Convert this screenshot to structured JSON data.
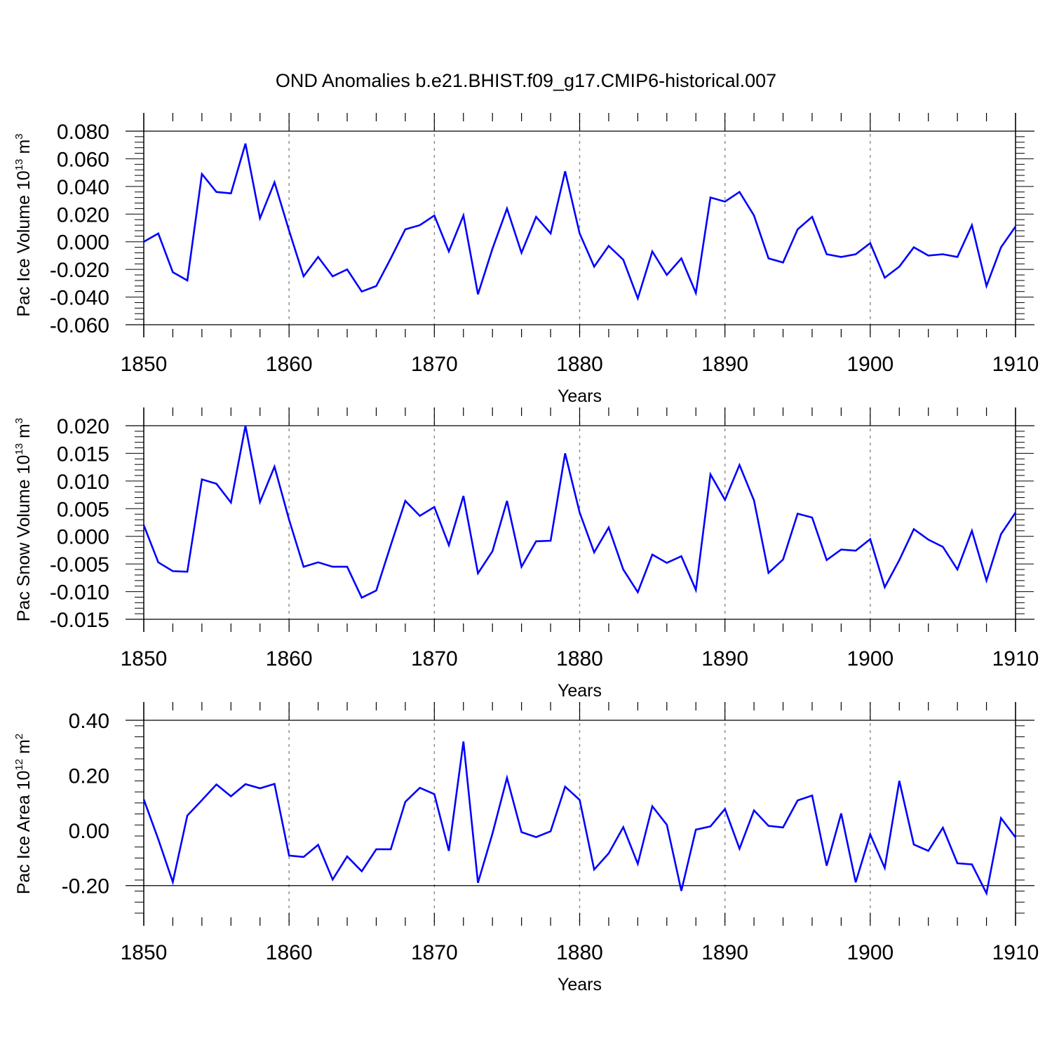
{
  "figure": {
    "title": "OND Anomalies b.e21.BHIST.f09_g17.CMIP6-historical.007",
    "line_color": "#0000ff"
  },
  "chart_data": [
    {
      "type": "line",
      "ylabel": {
        "main": "Pac Ice Volume 10",
        "sup": "13",
        "unit": " m",
        "unit_sup": "3"
      },
      "xlabel": "Years",
      "xlim": [
        1850,
        1910
      ],
      "xticks": [
        1850,
        1860,
        1870,
        1880,
        1890,
        1900,
        1910
      ],
      "xtick_labels": [
        "1850",
        "1860",
        "1870",
        "1880",
        "1890",
        "1900",
        "1910"
      ],
      "ylim": [
        -0.06,
        0.08
      ],
      "yticks": [
        -0.06,
        -0.04,
        -0.02,
        0.0,
        0.02,
        0.04,
        0.06,
        0.08
      ],
      "ytick_labels": [
        "-0.060",
        "-0.040",
        "-0.020",
        "0.000",
        "0.020",
        "0.040",
        "0.060",
        "0.080"
      ],
      "grid": "vertical dashed at major x ticks",
      "series": [
        {
          "x": [
            1850,
            1851,
            1852,
            1853,
            1854,
            1855,
            1856,
            1857,
            1858,
            1859,
            1860,
            1861,
            1862,
            1863,
            1864,
            1865,
            1866,
            1867,
            1868,
            1869,
            1870,
            1871,
            1872,
            1873,
            1874,
            1875,
            1876,
            1877,
            1878,
            1879,
            1880,
            1881,
            1882,
            1883,
            1884,
            1885,
            1886,
            1887,
            1888,
            1889,
            1890,
            1891,
            1892,
            1893,
            1894,
            1895,
            1896,
            1897,
            1898,
            1899,
            1900,
            1901,
            1902,
            1903,
            1904,
            1905,
            1906,
            1907,
            1908,
            1909,
            1910
          ],
          "values": [
            0.0,
            0.006,
            -0.022,
            -0.028,
            0.049,
            0.036,
            0.035,
            0.071,
            0.017,
            0.043,
            0.008,
            -0.025,
            -0.011,
            -0.025,
            -0.02,
            -0.036,
            -0.032,
            -0.012,
            0.009,
            0.012,
            0.019,
            -0.007,
            0.019,
            -0.038,
            -0.005,
            0.024,
            -0.008,
            0.018,
            0.006,
            0.051,
            0.006,
            -0.018,
            -0.003,
            -0.013,
            -0.041,
            -0.007,
            -0.024,
            -0.012,
            -0.037,
            0.032,
            0.029,
            0.036,
            0.019,
            -0.012,
            -0.015,
            0.009,
            0.018,
            -0.009,
            -0.011,
            -0.009,
            -0.001,
            -0.026,
            -0.018,
            -0.004,
            -0.01,
            -0.009,
            -0.011,
            0.012,
            -0.032,
            -0.004,
            0.011
          ]
        }
      ]
    },
    {
      "type": "line",
      "ylabel": {
        "main": "Pac Snow Volume 10",
        "sup": "13",
        "unit": " m",
        "unit_sup": "3"
      },
      "xlabel": "Years",
      "xlim": [
        1850,
        1910
      ],
      "xticks": [
        1850,
        1860,
        1870,
        1880,
        1890,
        1900,
        1910
      ],
      "xtick_labels": [
        "1850",
        "1860",
        "1870",
        "1880",
        "1890",
        "1900",
        "1910"
      ],
      "ylim": [
        -0.015,
        0.02
      ],
      "yticks": [
        -0.015,
        -0.01,
        -0.005,
        0.0,
        0.005,
        0.01,
        0.015,
        0.02
      ],
      "ytick_labels": [
        "-0.015",
        "-0.010",
        "-0.005",
        "0.000",
        "0.005",
        "0.010",
        "0.015",
        "0.020"
      ],
      "grid": "vertical dashed at major x ticks",
      "series": [
        {
          "x": [
            1850,
            1851,
            1852,
            1853,
            1854,
            1855,
            1856,
            1857,
            1858,
            1859,
            1860,
            1861,
            1862,
            1863,
            1864,
            1865,
            1866,
            1867,
            1868,
            1869,
            1870,
            1871,
            1872,
            1873,
            1874,
            1875,
            1876,
            1877,
            1878,
            1879,
            1880,
            1881,
            1882,
            1883,
            1884,
            1885,
            1886,
            1887,
            1888,
            1889,
            1890,
            1891,
            1892,
            1893,
            1894,
            1895,
            1896,
            1897,
            1898,
            1899,
            1900,
            1901,
            1902,
            1903,
            1904,
            1905,
            1906,
            1907,
            1908,
            1909,
            1910
          ],
          "values": [
            0.002,
            -0.0047,
            -0.0063,
            -0.0064,
            0.0103,
            0.0095,
            0.0061,
            0.02,
            0.0062,
            0.0126,
            0.003,
            -0.0055,
            -0.0047,
            -0.0055,
            -0.0055,
            -0.0111,
            -0.0098,
            -0.0016,
            0.0064,
            0.0037,
            0.0053,
            -0.0016,
            0.0073,
            -0.0067,
            -0.0027,
            0.0064,
            -0.0055,
            -0.0009,
            -0.0008,
            0.015,
            0.0043,
            -0.0029,
            0.0016,
            -0.006,
            -0.0101,
            -0.0033,
            -0.0048,
            -0.0036,
            -0.0097,
            0.0112,
            0.0066,
            0.0129,
            0.0065,
            -0.0066,
            -0.0042,
            0.0041,
            0.0034,
            -0.0043,
            -0.0024,
            -0.0026,
            -0.0005,
            -0.0092,
            -0.0043,
            0.0013,
            -0.0006,
            -0.0019,
            -0.006,
            0.001,
            -0.008,
            0.0004,
            0.0043
          ]
        }
      ]
    },
    {
      "type": "line",
      "ylabel": {
        "main": "Pac Ice Area 10",
        "sup": "12",
        "unit": " m",
        "unit_sup": "2"
      },
      "xlabel": "Years",
      "xlim": [
        1850,
        1910
      ],
      "xticks": [
        1850,
        1860,
        1870,
        1880,
        1890,
        1900,
        1910
      ],
      "xtick_labels": [
        "1850",
        "1860",
        "1870",
        "1880",
        "1890",
        "1900",
        "1910"
      ],
      "ylim": [
        -0.3,
        0.4
      ],
      "yticks": [
        -0.2,
        0.0,
        0.2,
        0.4
      ],
      "ytick_labels": [
        "-0.20",
        "0.00",
        "0.20",
        "0.40"
      ],
      "grid": "vertical dashed at major x ticks",
      "series": [
        {
          "x": [
            1850,
            1851,
            1852,
            1853,
            1854,
            1855,
            1856,
            1857,
            1858,
            1859,
            1860,
            1861,
            1862,
            1863,
            1864,
            1865,
            1866,
            1867,
            1868,
            1869,
            1870,
            1871,
            1872,
            1873,
            1874,
            1875,
            1876,
            1877,
            1878,
            1879,
            1880,
            1881,
            1882,
            1883,
            1884,
            1885,
            1886,
            1887,
            1888,
            1889,
            1890,
            1891,
            1892,
            1893,
            1894,
            1895,
            1896,
            1897,
            1898,
            1899,
            1900,
            1901,
            1902,
            1903,
            1904,
            1905,
            1906,
            1907,
            1908,
            1909,
            1910
          ],
          "values": [
            0.113,
            -0.032,
            -0.187,
            0.054,
            0.11,
            0.167,
            0.124,
            0.168,
            0.153,
            0.169,
            -0.091,
            -0.096,
            -0.052,
            -0.178,
            -0.094,
            -0.148,
            -0.068,
            -0.068,
            0.104,
            0.155,
            0.132,
            -0.074,
            0.323,
            -0.19,
            -0.011,
            0.191,
            -0.006,
            -0.024,
            -0.003,
            0.159,
            0.111,
            -0.142,
            -0.083,
            0.012,
            -0.121,
            0.088,
            0.021,
            -0.219,
            0.003,
            0.015,
            0.078,
            -0.066,
            0.073,
            0.017,
            0.011,
            0.109,
            0.127,
            -0.128,
            0.062,
            -0.188,
            -0.014,
            -0.136,
            0.18,
            -0.051,
            -0.074,
            0.01,
            -0.119,
            -0.123,
            -0.228,
            0.045,
            -0.025
          ]
        }
      ]
    }
  ]
}
